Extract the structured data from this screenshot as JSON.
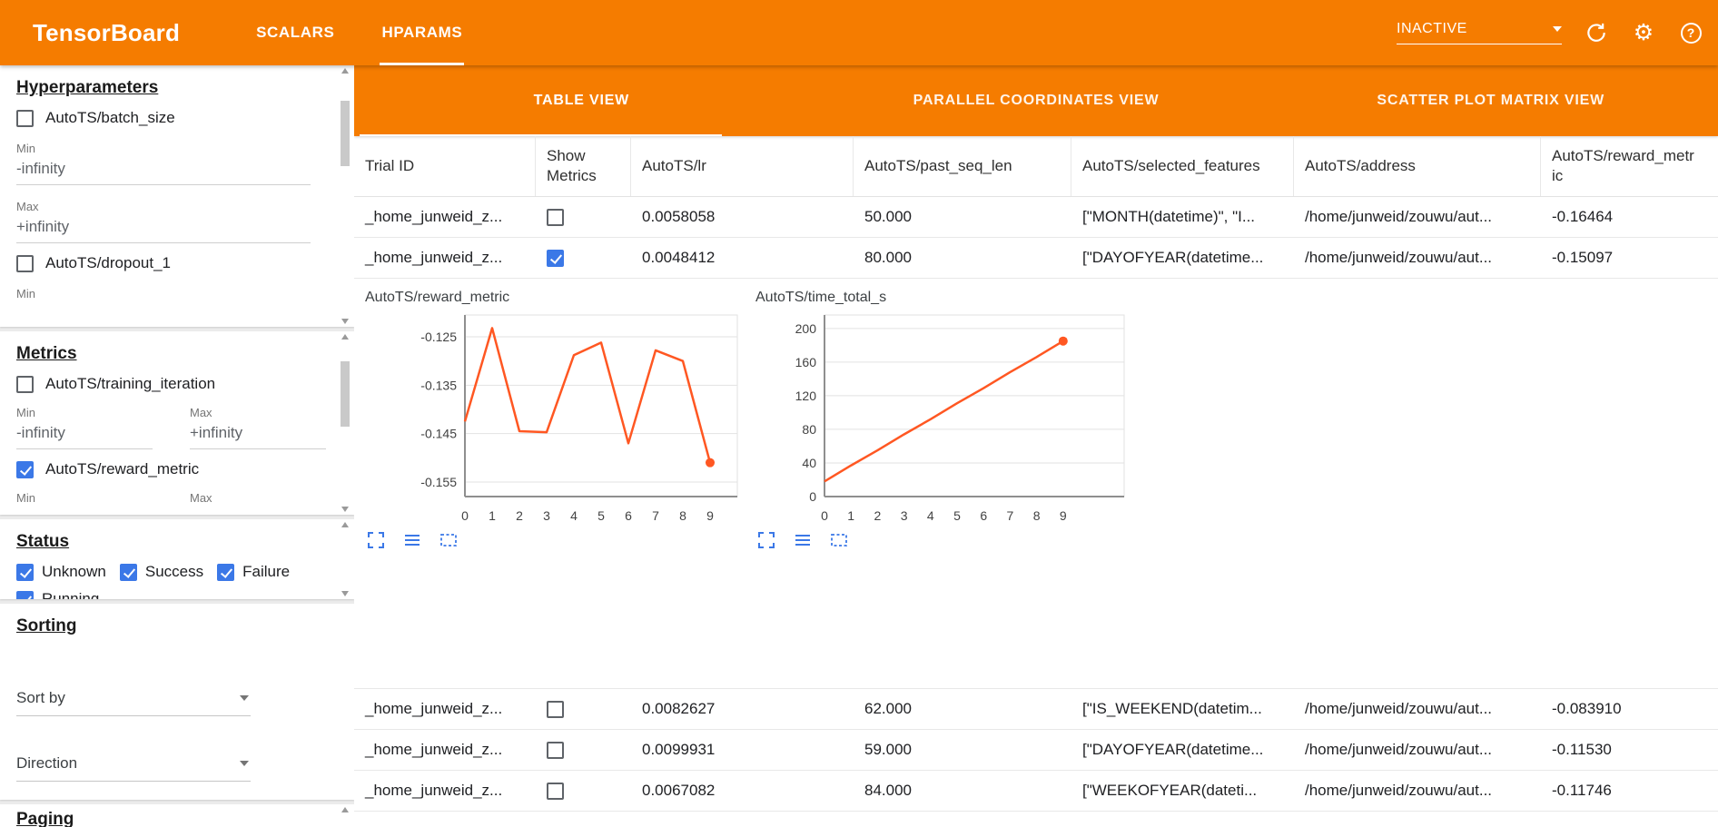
{
  "colors": {
    "toolbar_orange": "#f57c00",
    "accent_blue": "#3b78e7",
    "chart_line": "#ff5722"
  },
  "app": {
    "title": "TensorBoard",
    "toolbar_tabs": [
      {
        "label": "SCALARS",
        "active": false
      },
      {
        "label": "HPARAMS",
        "active": true
      }
    ],
    "run_selector": {
      "value": "INACTIVE"
    },
    "icons": {
      "gear_glyph": "⚙",
      "help_glyph": "?"
    }
  },
  "sidebar": {
    "hyperparameters": {
      "title": "Hyperparameters",
      "items": [
        {
          "label": "AutoTS/batch_size",
          "checked": false,
          "fields": [
            {
              "label": "Min",
              "value": "-infinity"
            },
            {
              "label": "Max",
              "value": "+infinity"
            }
          ]
        },
        {
          "label": "AutoTS/dropout_1",
          "checked": false,
          "fields": [
            {
              "label": "Min"
            }
          ]
        }
      ]
    },
    "metrics": {
      "title": "Metrics",
      "items": [
        {
          "label": "AutoTS/training_iteration",
          "checked": false,
          "fields_inline": [
            {
              "label": "Min",
              "value": "-infinity"
            },
            {
              "label": "Max",
              "value": "+infinity"
            }
          ]
        },
        {
          "label": "AutoTS/reward_metric",
          "checked": true,
          "fields_inline": [
            {
              "label": "Min"
            },
            {
              "label": "Max"
            }
          ]
        }
      ]
    },
    "status": {
      "title": "Status",
      "items": [
        {
          "label": "Unknown",
          "checked": true
        },
        {
          "label": "Success",
          "checked": true
        },
        {
          "label": "Failure",
          "checked": true
        },
        {
          "label": "Running",
          "checked": true
        }
      ]
    },
    "sorting": {
      "title": "Sorting",
      "sort_by_label": "Sort by",
      "direction_label": "Direction"
    },
    "paging": {
      "title": "Paging"
    }
  },
  "main": {
    "view_tabs": [
      {
        "label": "TABLE VIEW",
        "active": true
      },
      {
        "label": "PARALLEL COORDINATES VIEW",
        "active": false
      },
      {
        "label": "SCATTER PLOT MATRIX VIEW",
        "active": false
      }
    ],
    "table": {
      "columns": [
        "Trial ID",
        "Show Metrics",
        "AutoTS/lr",
        "AutoTS/past_seq_len",
        "AutoTS/selected_features",
        "AutoTS/address",
        "AutoTS/reward_metric"
      ],
      "rows": [
        {
          "trial_id": "_home_junweid_z...",
          "show_metrics": false,
          "lr": "0.0058058",
          "past_seq_len": "50.000",
          "selected_features": "[\"MONTH(datetime)\", \"I...",
          "address": "/home/junweid/zouwu/aut...",
          "reward_metric": "-0.16464"
        },
        {
          "trial_id": "_home_junweid_z...",
          "show_metrics": true,
          "lr": "0.0048412",
          "past_seq_len": "80.000",
          "selected_features": "[\"DAYOFYEAR(datetime...",
          "address": "/home/junweid/zouwu/aut...",
          "reward_metric": "-0.15097"
        },
        {
          "trial_id": "_home_junweid_z...",
          "show_metrics": false,
          "lr": "0.0082627",
          "past_seq_len": "62.000",
          "selected_features": "[\"IS_WEEKEND(datetim...",
          "address": "/home/junweid/zouwu/aut...",
          "reward_metric": "-0.083910"
        },
        {
          "trial_id": "_home_junweid_z...",
          "show_metrics": false,
          "lr": "0.0099931",
          "past_seq_len": "59.000",
          "selected_features": "[\"DAYOFYEAR(datetime...",
          "address": "/home/junweid/zouwu/aut...",
          "reward_metric": "-0.11530"
        },
        {
          "trial_id": "_home_junweid_z...",
          "show_metrics": false,
          "lr": "0.0067082",
          "past_seq_len": "84.000",
          "selected_features": "[\"WEEKOFYEAR(dateti...",
          "address": "/home/junweid/zouwu/aut...",
          "reward_metric": "-0.11746"
        }
      ]
    },
    "chart_data": [
      {
        "type": "line",
        "title": "AutoTS/reward_metric",
        "x": [
          0,
          1,
          2,
          3,
          4,
          5,
          6,
          7,
          8,
          9
        ],
        "values": [
          -0.1425,
          -0.1232,
          -0.1445,
          -0.1447,
          -0.1288,
          -0.1262,
          -0.147,
          -0.1278,
          -0.13,
          -0.151
        ],
        "xlim": [
          0,
          10
        ],
        "ylim": [
          -0.158,
          -0.1205
        ],
        "ytick_values": [
          -0.125,
          -0.135,
          -0.145,
          -0.155
        ],
        "ytick_labels": [
          "-0.125",
          "-0.135",
          "-0.145",
          "-0.155"
        ],
        "line_color": "#ff5722",
        "end_dot": true,
        "grid": true,
        "legend": "none"
      },
      {
        "type": "line",
        "title": "AutoTS/time_total_s",
        "x": [
          0,
          1,
          2,
          3,
          4,
          5,
          6,
          7,
          8,
          9
        ],
        "values": [
          18,
          37,
          55,
          74,
          92,
          111,
          129,
          148,
          166,
          185
        ],
        "xlim": [
          0,
          11.3
        ],
        "ylim": [
          0,
          216
        ],
        "ytick_values": [
          0,
          40,
          80,
          120,
          160,
          200
        ],
        "ytick_labels": [
          "0",
          "40",
          "80",
          "120",
          "160",
          "200"
        ],
        "line_color": "#ff5722",
        "end_dot": true,
        "grid": true,
        "legend": "none"
      }
    ],
    "chart_actions": [
      "expand",
      "lines",
      "zoom-select"
    ]
  }
}
